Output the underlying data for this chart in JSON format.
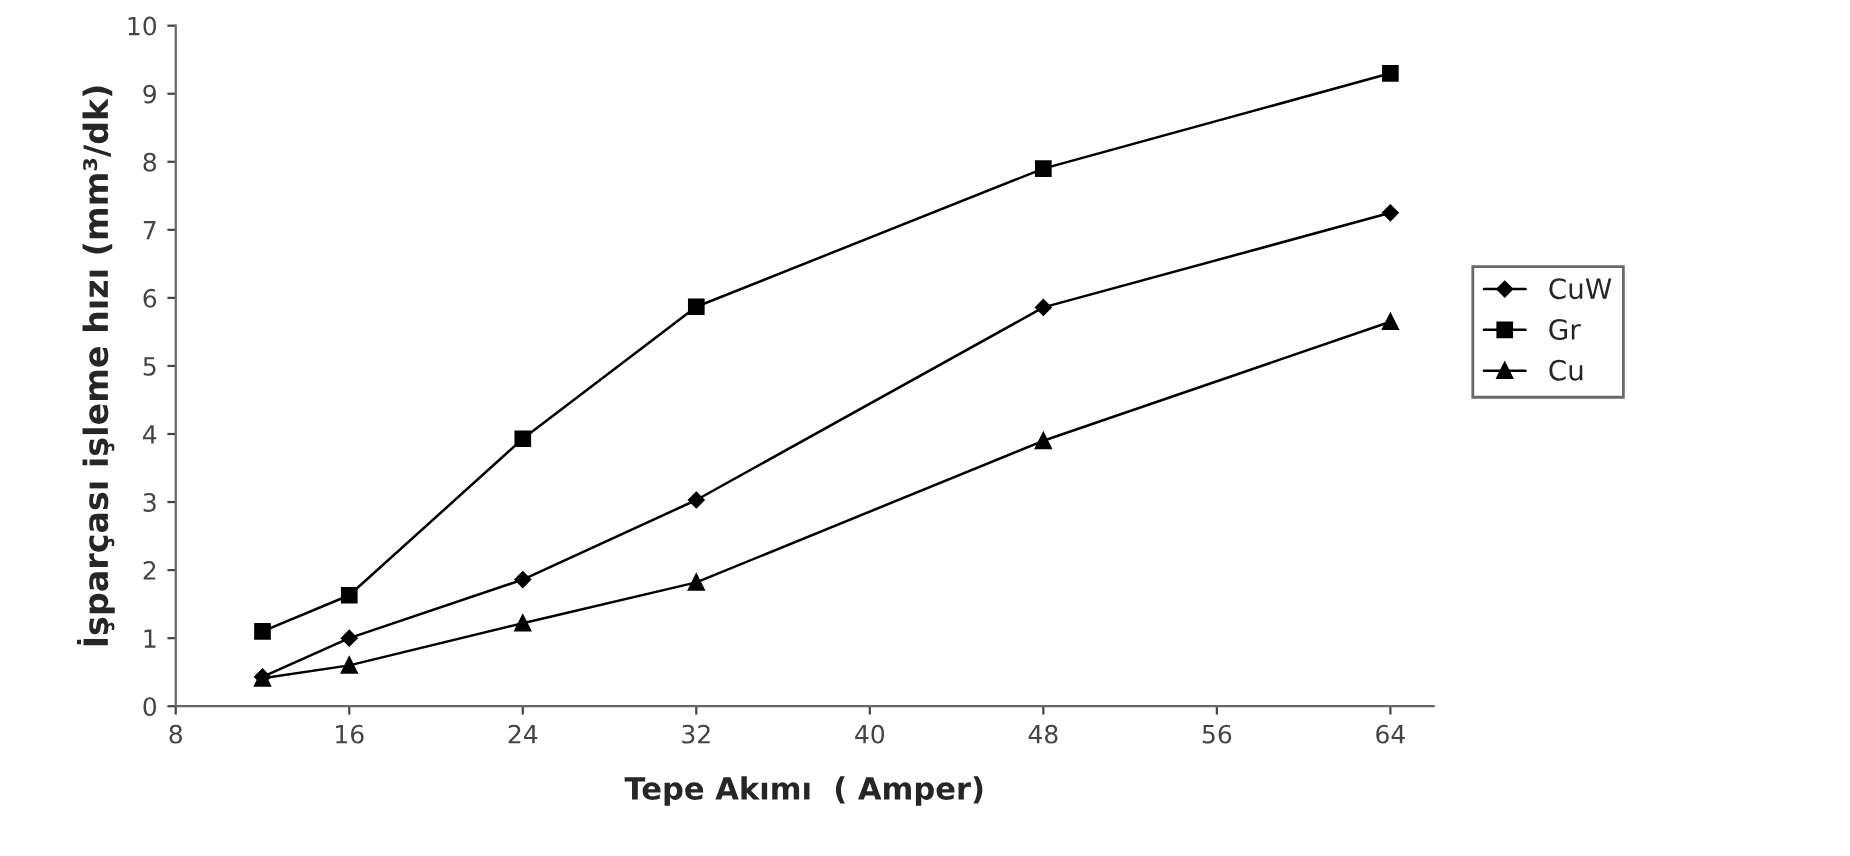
{
  "chart_data": {
    "type": "line",
    "xlabel": "Tepe Akımı  ( Amper)",
    "ylabel": "İşparçası işleme hızı (mm³/dk)",
    "x": [
      12,
      16,
      24,
      32,
      48,
      64
    ],
    "series": [
      {
        "name": "CuW",
        "color": "#000000",
        "marker": "diamond",
        "values": [
          0.43,
          1.0,
          1.86,
          3.03,
          5.86,
          7.25
        ]
      },
      {
        "name": "Gr",
        "color": "#000000",
        "marker": "square",
        "values": [
          1.1,
          1.63,
          3.93,
          5.87,
          7.9,
          9.3
        ]
      },
      {
        "name": "Cu",
        "color": "#000000",
        "marker": "triangle",
        "values": [
          0.41,
          0.6,
          1.22,
          1.82,
          3.9,
          5.65
        ]
      }
    ],
    "xlim": [
      8,
      66
    ],
    "xticks": [
      8,
      16,
      24,
      32,
      40,
      48,
      56,
      64
    ],
    "ylim": [
      0,
      10
    ],
    "yticks": [
      0,
      1,
      2,
      3,
      4,
      5,
      6,
      7,
      8,
      9,
      10
    ],
    "grid": false,
    "legend": "right",
    "line_style": "solid"
  }
}
